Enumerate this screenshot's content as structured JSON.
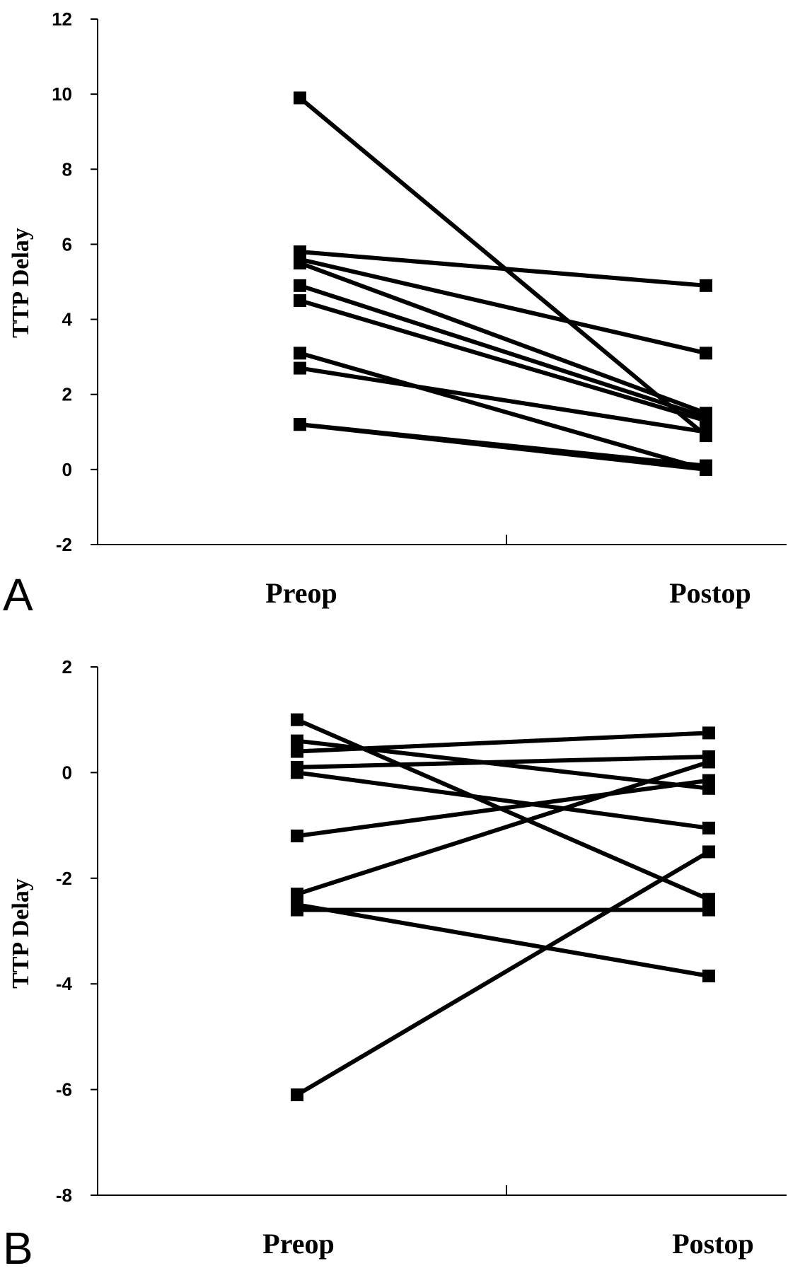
{
  "chart_data": [
    {
      "panel": "A",
      "type": "line",
      "title": "",
      "xlabel": "",
      "ylabel": "TTP Delay",
      "categories": [
        "Preop",
        "Postop"
      ],
      "ylim": [
        -2,
        12
      ],
      "yticks": [
        12,
        10,
        8,
        6,
        4,
        2,
        0,
        -2
      ],
      "grid": false,
      "series": [
        {
          "values": [
            9.9,
            0.9
          ]
        },
        {
          "values": [
            5.8,
            4.9
          ]
        },
        {
          "values": [
            5.6,
            3.1
          ]
        },
        {
          "values": [
            5.5,
            1.5
          ]
        },
        {
          "values": [
            4.9,
            1.4
          ]
        },
        {
          "values": [
            4.5,
            1.3
          ]
        },
        {
          "values": [
            3.1,
            0.0
          ]
        },
        {
          "values": [
            2.7,
            1.0
          ]
        },
        {
          "values": [
            1.2,
            0.1
          ]
        },
        {
          "values": [
            1.2,
            0.0
          ]
        }
      ]
    },
    {
      "panel": "B",
      "type": "line",
      "title": "",
      "xlabel": "",
      "ylabel": "TTP Delay",
      "categories": [
        "Preop",
        "Postop"
      ],
      "ylim": [
        -8,
        2
      ],
      "yticks": [
        2,
        0,
        -2,
        -4,
        -6,
        -8
      ],
      "grid": false,
      "series": [
        {
          "values": [
            1.0,
            -2.4
          ]
        },
        {
          "values": [
            0.6,
            -0.3
          ]
        },
        {
          "values": [
            0.4,
            0.75
          ]
        },
        {
          "values": [
            0.1,
            0.3
          ]
        },
        {
          "values": [
            0.0,
            -1.05
          ]
        },
        {
          "values": [
            -1.2,
            -0.15
          ]
        },
        {
          "values": [
            -2.3,
            0.2
          ]
        },
        {
          "values": [
            -2.5,
            -3.85
          ]
        },
        {
          "values": [
            -2.6,
            -2.6
          ]
        },
        {
          "values": [
            -6.1,
            -1.5
          ]
        }
      ]
    }
  ]
}
